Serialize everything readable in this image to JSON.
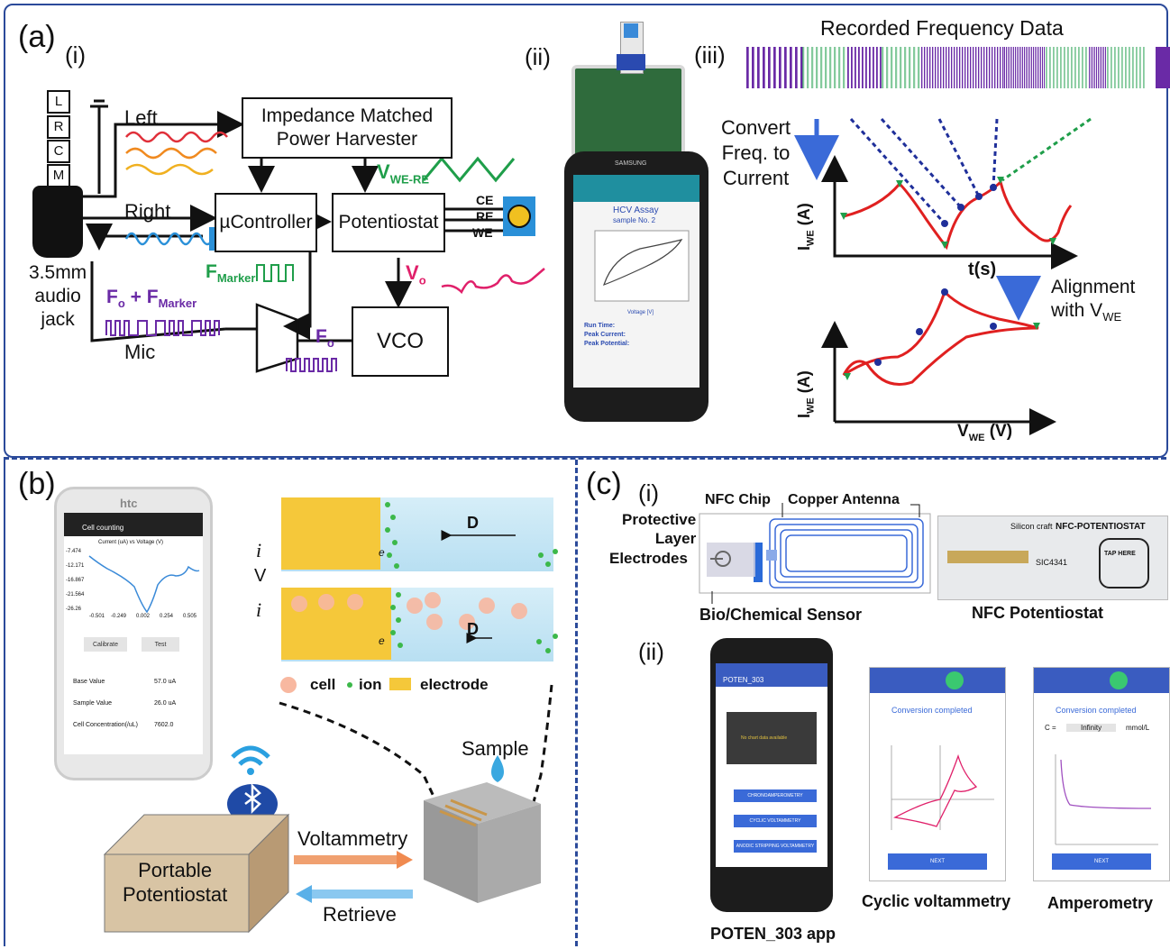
{
  "panel_a": {
    "label": "(a)",
    "sub_i": "(i)",
    "sub_ii": "(ii)",
    "sub_iii": "(iii)",
    "jack_letters": [
      "L",
      "R",
      "C",
      "M"
    ],
    "jack_caption": "3.5mm\naudio\njack",
    "left": "Left",
    "right": "Right",
    "mic": "Mic",
    "power_harvester": "Impedance Matched\nPower Harvester",
    "controller": "µController",
    "potentiostat": "Potentiostat",
    "vco": "VCO",
    "v_we_re": "V",
    "v_we_re_sub": "WE-RE",
    "electrodes": [
      "CE",
      "RE",
      "WE"
    ],
    "f_marker": "F",
    "f_marker_sub": "Marker",
    "fo_fmarker_a": "F",
    "fo_fmarker_a_sub": "o",
    "fo_fmarker_plus": "+ F",
    "fo_fmarker_b_sub": "Marker",
    "vo": "V",
    "vo_sub": "o",
    "fo": "F",
    "fo_sub": "o",
    "phone_brand": "SAMSUNG",
    "phone_app_title": "HCV Assay",
    "phone_sample": "sample No. 2",
    "phone_xlabel": "Voltage [V]",
    "phone_run_time": "Run Time:",
    "phone_peak_current": "Peak Current:",
    "phone_peak_potential": "Peak Potential:",
    "recorded": "Recorded Frequency Data",
    "convert": "Convert\nFreq. to\nCurrent",
    "iwe_y": "I",
    "iwe_y_sub": "WE",
    "iwe_y_unit": " (A)",
    "t_axis": "t(s)",
    "alignment": "Alignment\nwith V",
    "alignment_sub": "WE",
    "vwe_axis": "V",
    "vwe_axis_sub": "WE",
    "vwe_axis_unit": " (V)"
  },
  "panel_b": {
    "label": "(b)",
    "phone_brand": "htc",
    "app_title": "Cell counting",
    "plot_title": "Current (uA) vs Voltage (V)",
    "y_ticks": [
      "-7.474",
      "-12.171",
      "-16.867",
      "-21.564",
      "-26.26"
    ],
    "x_ticks": [
      "-0.501",
      "-0.249",
      "0.002",
      "0.254",
      "0.505"
    ],
    "calibrate": "Calibrate",
    "test": "Test",
    "rows": [
      {
        "label": "Base Value",
        "value": "57.0 uA"
      },
      {
        "label": "Sample Value",
        "value": "26.0 uA"
      },
      {
        "label": "Cell Concentration(/uL)",
        "value": "7602.0"
      }
    ],
    "d_label": "D",
    "i_label": "i",
    "v_label": "V",
    "e_minus": "e",
    "legend_cell": "cell",
    "legend_ion": "ion",
    "legend_electrode": "electrode",
    "sample": "Sample",
    "portable": "Portable\nPotentiostat",
    "voltammetry": "Voltammetry",
    "retrieve": "Retrieve"
  },
  "panel_c": {
    "label": "(c)",
    "sub_i": "(i)",
    "sub_ii": "(ii)",
    "nfc_chip": "NFC Chip",
    "copper_antenna": "Copper Antenna",
    "protective_layer": "Protective\nLayer",
    "electrodes": "Electrodes",
    "bio_sensor": "Bio/Chemical Sensor",
    "nfc_potentiostat": "NFC Potentiostat",
    "board_title": "NFC-POTENTIOSTAT",
    "board_tap": "TAP HERE",
    "board_chip": "SIC4341",
    "board_brand": "Silicon craft",
    "app_name": "POTEN_303",
    "no_chart": "No chart data available",
    "btn1": "CHRONOAMPEROMETRY",
    "btn2": "CYCLIC VOLTAMMETRY",
    "btn3": "ANODIC STRIPPING VOLTAMMETRY",
    "conversion": "Conversion completed",
    "next": "NEXT",
    "c_eq": "C =",
    "c_value": "Infinity",
    "c_unit": "mmol/L",
    "caption_app": "POTEN_303 app",
    "caption_cv": "Cyclic voltammetry",
    "caption_amp": "Amperometry"
  },
  "colors": {
    "frame": "#2b4a9a",
    "purple": "#6a2aa6",
    "green": "#1f9e4a",
    "red_curve": "#e02020",
    "blue_dot": "#1f2f9a",
    "arrow_blue": "#3a6ad8",
    "magenta": "#e0206a"
  }
}
